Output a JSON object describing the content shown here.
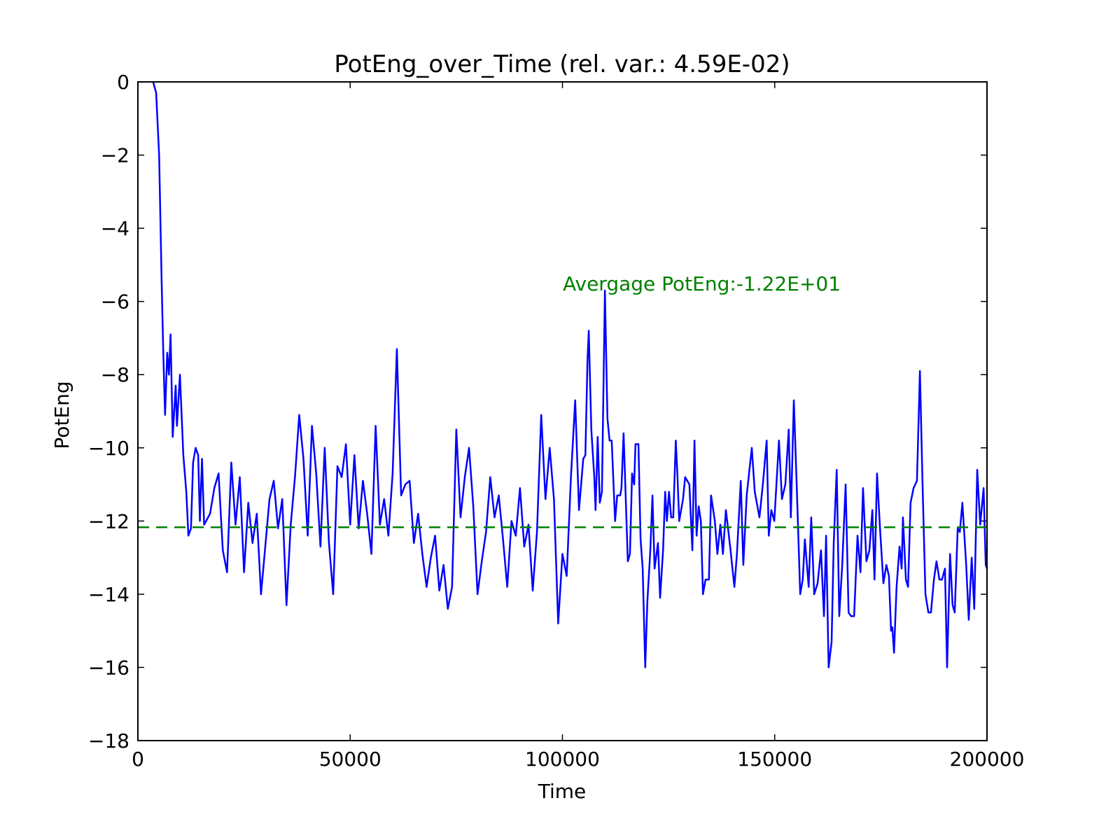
{
  "chart_data": {
    "type": "line",
    "title": "PotEng_over_Time (rel. var.: 4.59E-02)",
    "xlabel": "Time",
    "ylabel": "PotEng",
    "annotation": "Avergage PotEng:-1.22E+01",
    "mean_line": {
      "value": -12.17,
      "color": "#008000"
    },
    "color": "#0000ff",
    "xlim": [
      0,
      200000
    ],
    "ylim": [
      -18,
      0
    ],
    "xticks": [
      0,
      50000,
      100000,
      150000,
      200000
    ],
    "yticks": [
      {
        "value": 0,
        "label": "0"
      },
      {
        "value": -2,
        "label": "−2"
      },
      {
        "value": -4,
        "label": "−4"
      },
      {
        "value": -6,
        "label": "−6"
      },
      {
        "value": -8,
        "label": "−8"
      },
      {
        "value": -10,
        "label": "−10"
      },
      {
        "value": -12,
        "label": "−12"
      },
      {
        "value": -14,
        "label": "−14"
      },
      {
        "value": -16,
        "label": "−16"
      },
      {
        "value": -18,
        "label": "−18"
      }
    ],
    "x": [
      3600,
      4300,
      5000,
      5600,
      6000,
      6400,
      6900,
      7300,
      7700,
      8200,
      8900,
      9200,
      9900,
      10700,
      11400,
      11900,
      12500,
      13000,
      13600,
      14200,
      14600,
      15100,
      15600,
      17000,
      18000,
      19000,
      20000,
      21000,
      22000,
      23000,
      24000,
      25000,
      26000,
      27000,
      28000,
      29000,
      30000,
      31000,
      32000,
      33000,
      34000,
      35000,
      36000,
      37000,
      38000,
      39000,
      40000,
      41000,
      42000,
      43000,
      44000,
      45000,
      46000,
      47000,
      48000,
      49000,
      50000,
      51000,
      52000,
      53000,
      54000,
      55000,
      56000,
      57000,
      58000,
      59000,
      60000,
      61000,
      62000,
      63000,
      64000,
      65000,
      66000,
      67000,
      68000,
      69000,
      70000,
      71000,
      72000,
      73000,
      74000,
      75000,
      76000,
      77000,
      78000,
      79000,
      80000,
      81000,
      82000,
      83000,
      84000,
      85000,
      86000,
      87000,
      88000,
      89000,
      90000,
      91000,
      92000,
      93000,
      94000,
      95000,
      96000,
      97000,
      98000,
      99000,
      100000,
      101000,
      102000,
      103000,
      103900,
      104900,
      105400,
      105900,
      106200,
      106800,
      107500,
      107800,
      108300,
      108800,
      109300,
      110000,
      110600,
      111100,
      111600,
      112400,
      112900,
      113600,
      113900,
      114400,
      115400,
      115900,
      116400,
      116900,
      117200,
      117900,
      118400,
      118900,
      119500,
      120000,
      120700,
      121200,
      121700,
      122500,
      123000,
      123700,
      124200,
      124600,
      125100,
      125600,
      126100,
      126700,
      127100,
      127500,
      128400,
      128900,
      129900,
      130600,
      131100,
      131600,
      132100,
      132600,
      133100,
      133700,
      134500,
      135000,
      135900,
      136500,
      137200,
      137800,
      138500,
      139500,
      140500,
      141100,
      142000,
      142600,
      143400,
      144600,
      145300,
      146400,
      147200,
      148100,
      148600,
      149200,
      149900,
      151000,
      151700,
      152500,
      153300,
      153800,
      154500,
      155200,
      156000,
      156600,
      157100,
      158000,
      158600,
      159300,
      160100,
      160900,
      161600,
      162100,
      162700,
      163400,
      163900,
      164600,
      165200,
      165900,
      166700,
      167400,
      168000,
      168700,
      169500,
      170200,
      170800,
      171600,
      172300,
      173000,
      173500,
      174100,
      174800,
      175600,
      176300,
      176900,
      177400,
      177700,
      178100,
      178700,
      179400,
      179900,
      180200,
      180900,
      181400,
      182000,
      182700,
      183500,
      184200,
      184800,
      185500,
      186200,
      186800,
      187500,
      188100,
      188800,
      189400,
      190100,
      190600,
      191300,
      191900,
      192400,
      193100,
      193600,
      194200,
      195100,
      195700,
      196400,
      197000,
      197700,
      198400,
      199200,
      199700,
      200000
    ],
    "values": [
      0,
      -0.3,
      -2.0,
      -5.5,
      -7.5,
      -9.1,
      -7.4,
      -8.0,
      -6.9,
      -9.7,
      -8.3,
      -9.4,
      -8.0,
      -10.2,
      -11.2,
      -12.4,
      -12.2,
      -10.4,
      -10.0,
      -10.2,
      -12.0,
      -10.3,
      -12.1,
      -11.8,
      -11.1,
      -10.7,
      -12.8,
      -13.4,
      -10.4,
      -12.1,
      -10.8,
      -13.4,
      -11.5,
      -12.6,
      -11.8,
      -14.0,
      -12.7,
      -11.4,
      -10.9,
      -12.2,
      -11.4,
      -14.3,
      -12.1,
      -10.8,
      -9.1,
      -10.3,
      -12.4,
      -9.4,
      -10.7,
      -12.7,
      -10.0,
      -12.6,
      -14.0,
      -10.5,
      -10.8,
      -9.9,
      -12.1,
      -10.2,
      -12.2,
      -10.9,
      -11.8,
      -12.9,
      -9.4,
      -12.1,
      -11.4,
      -12.4,
      -10.7,
      -7.3,
      -11.3,
      -11.0,
      -10.9,
      -12.6,
      -11.8,
      -12.9,
      -13.8,
      -13.0,
      -12.4,
      -13.9,
      -13.2,
      -14.4,
      -13.8,
      -9.5,
      -11.9,
      -10.8,
      -10.0,
      -11.6,
      -14.0,
      -13.1,
      -12.3,
      -10.8,
      -11.9,
      -11.3,
      -12.5,
      -13.8,
      -12.0,
      -12.4,
      -11.1,
      -12.7,
      -12.1,
      -13.9,
      -12.3,
      -9.1,
      -11.4,
      -10.0,
      -11.4,
      -14.8,
      -12.9,
      -13.5,
      -10.8,
      -8.7,
      -11.7,
      -10.3,
      -10.2,
      -7.6,
      -6.8,
      -9.5,
      -10.8,
      -11.7,
      -9.7,
      -11.5,
      -11.2,
      -5.7,
      -9.2,
      -9.8,
      -9.8,
      -12.0,
      -11.3,
      -11.3,
      -11.1,
      -9.6,
      -13.1,
      -12.9,
      -10.7,
      -11.0,
      -9.9,
      -9.9,
      -12.5,
      -13.3,
      -16.0,
      -14.2,
      -12.8,
      -11.3,
      -13.3,
      -12.6,
      -14.1,
      -12.8,
      -11.2,
      -12.0,
      -11.2,
      -11.9,
      -11.9,
      -9.8,
      -10.8,
      -12.0,
      -11.4,
      -10.8,
      -11.0,
      -12.8,
      -9.8,
      -12.4,
      -11.6,
      -12.0,
      -14.0,
      -13.6,
      -13.6,
      -11.3,
      -12.0,
      -12.9,
      -12.1,
      -12.9,
      -11.7,
      -12.7,
      -13.8,
      -12.9,
      -10.9,
      -13.2,
      -11.3,
      -10.0,
      -11.2,
      -11.9,
      -11.0,
      -9.8,
      -12.4,
      -11.7,
      -12.0,
      -9.8,
      -11.4,
      -11.0,
      -9.5,
      -11.9,
      -8.7,
      -11.1,
      -14.0,
      -13.6,
      -12.5,
      -13.8,
      -11.9,
      -14.0,
      -13.7,
      -12.8,
      -14.6,
      -12.4,
      -16.0,
      -15.3,
      -12.6,
      -10.6,
      -14.6,
      -13.2,
      -11.0,
      -14.5,
      -14.6,
      -14.6,
      -12.4,
      -13.4,
      -11.1,
      -13.1,
      -12.8,
      -11.7,
      -13.6,
      -10.7,
      -12.2,
      -13.7,
      -13.2,
      -13.5,
      -15.0,
      -14.9,
      -15.6,
      -13.8,
      -12.7,
      -13.3,
      -11.9,
      -13.6,
      -13.8,
      -11.5,
      -11.1,
      -10.9,
      -7.9,
      -10.9,
      -14.0,
      -14.5,
      -14.5,
      -13.6,
      -13.1,
      -13.6,
      -13.6,
      -13.3,
      -16.0,
      -12.9,
      -14.3,
      -14.5,
      -12.2,
      -12.3,
      -11.5,
      -13.2,
      -14.7,
      -13.0,
      -14.4,
      -10.6,
      -12.1,
      -11.1,
      -13.2,
      -13.3
    ]
  }
}
